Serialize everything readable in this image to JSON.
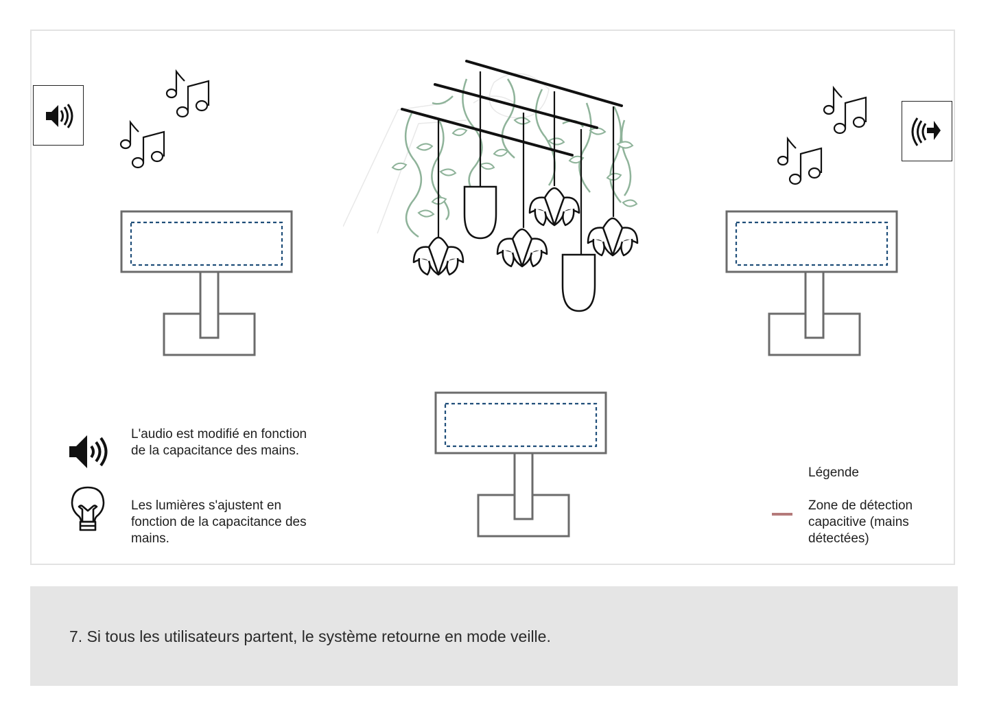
{
  "descriptions": {
    "audio": "L'audio est modifié en fonction de la capacitance des mains.",
    "lights": "Les lumières s'ajustent en fonction de la capacitance des mains."
  },
  "legend": {
    "title": "Légende",
    "item_label": "Zone de détection capacitive (mains détectées)",
    "item_color": "#b57a7a"
  },
  "footer": {
    "step_text": "7. Si tous les utilisateurs partent, le système retourne en mode veille."
  },
  "colors": {
    "sensor_dash": "#1f4e79",
    "vine": "#8fb39a",
    "stand_stroke": "#6b6b6b",
    "footer_bg": "#e5e5e5"
  },
  "icons": {
    "speaker_left": "speaker-loud-icon",
    "speaker_right": "speaker-waves-icon",
    "audio_desc": "speaker-loud-icon",
    "light_desc": "lightbulb-icon",
    "notes": "music-notes-icon"
  }
}
